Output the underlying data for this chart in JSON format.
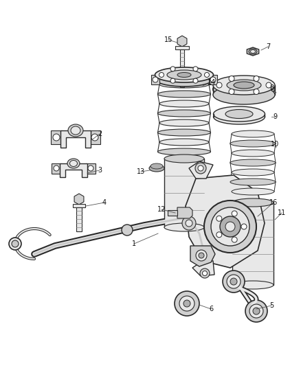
{
  "bg_color": "#ffffff",
  "lc": "#2a2a2a",
  "lc_light": "#888888",
  "fill_light": "#e8e8e8",
  "fill_mid": "#d0d0d0",
  "fill_dark": "#b0b0b0",
  "fill_metal": "#c8c8c8",
  "figsize": [
    4.38,
    5.33
  ],
  "dpi": 100,
  "title_fontsize": 7
}
